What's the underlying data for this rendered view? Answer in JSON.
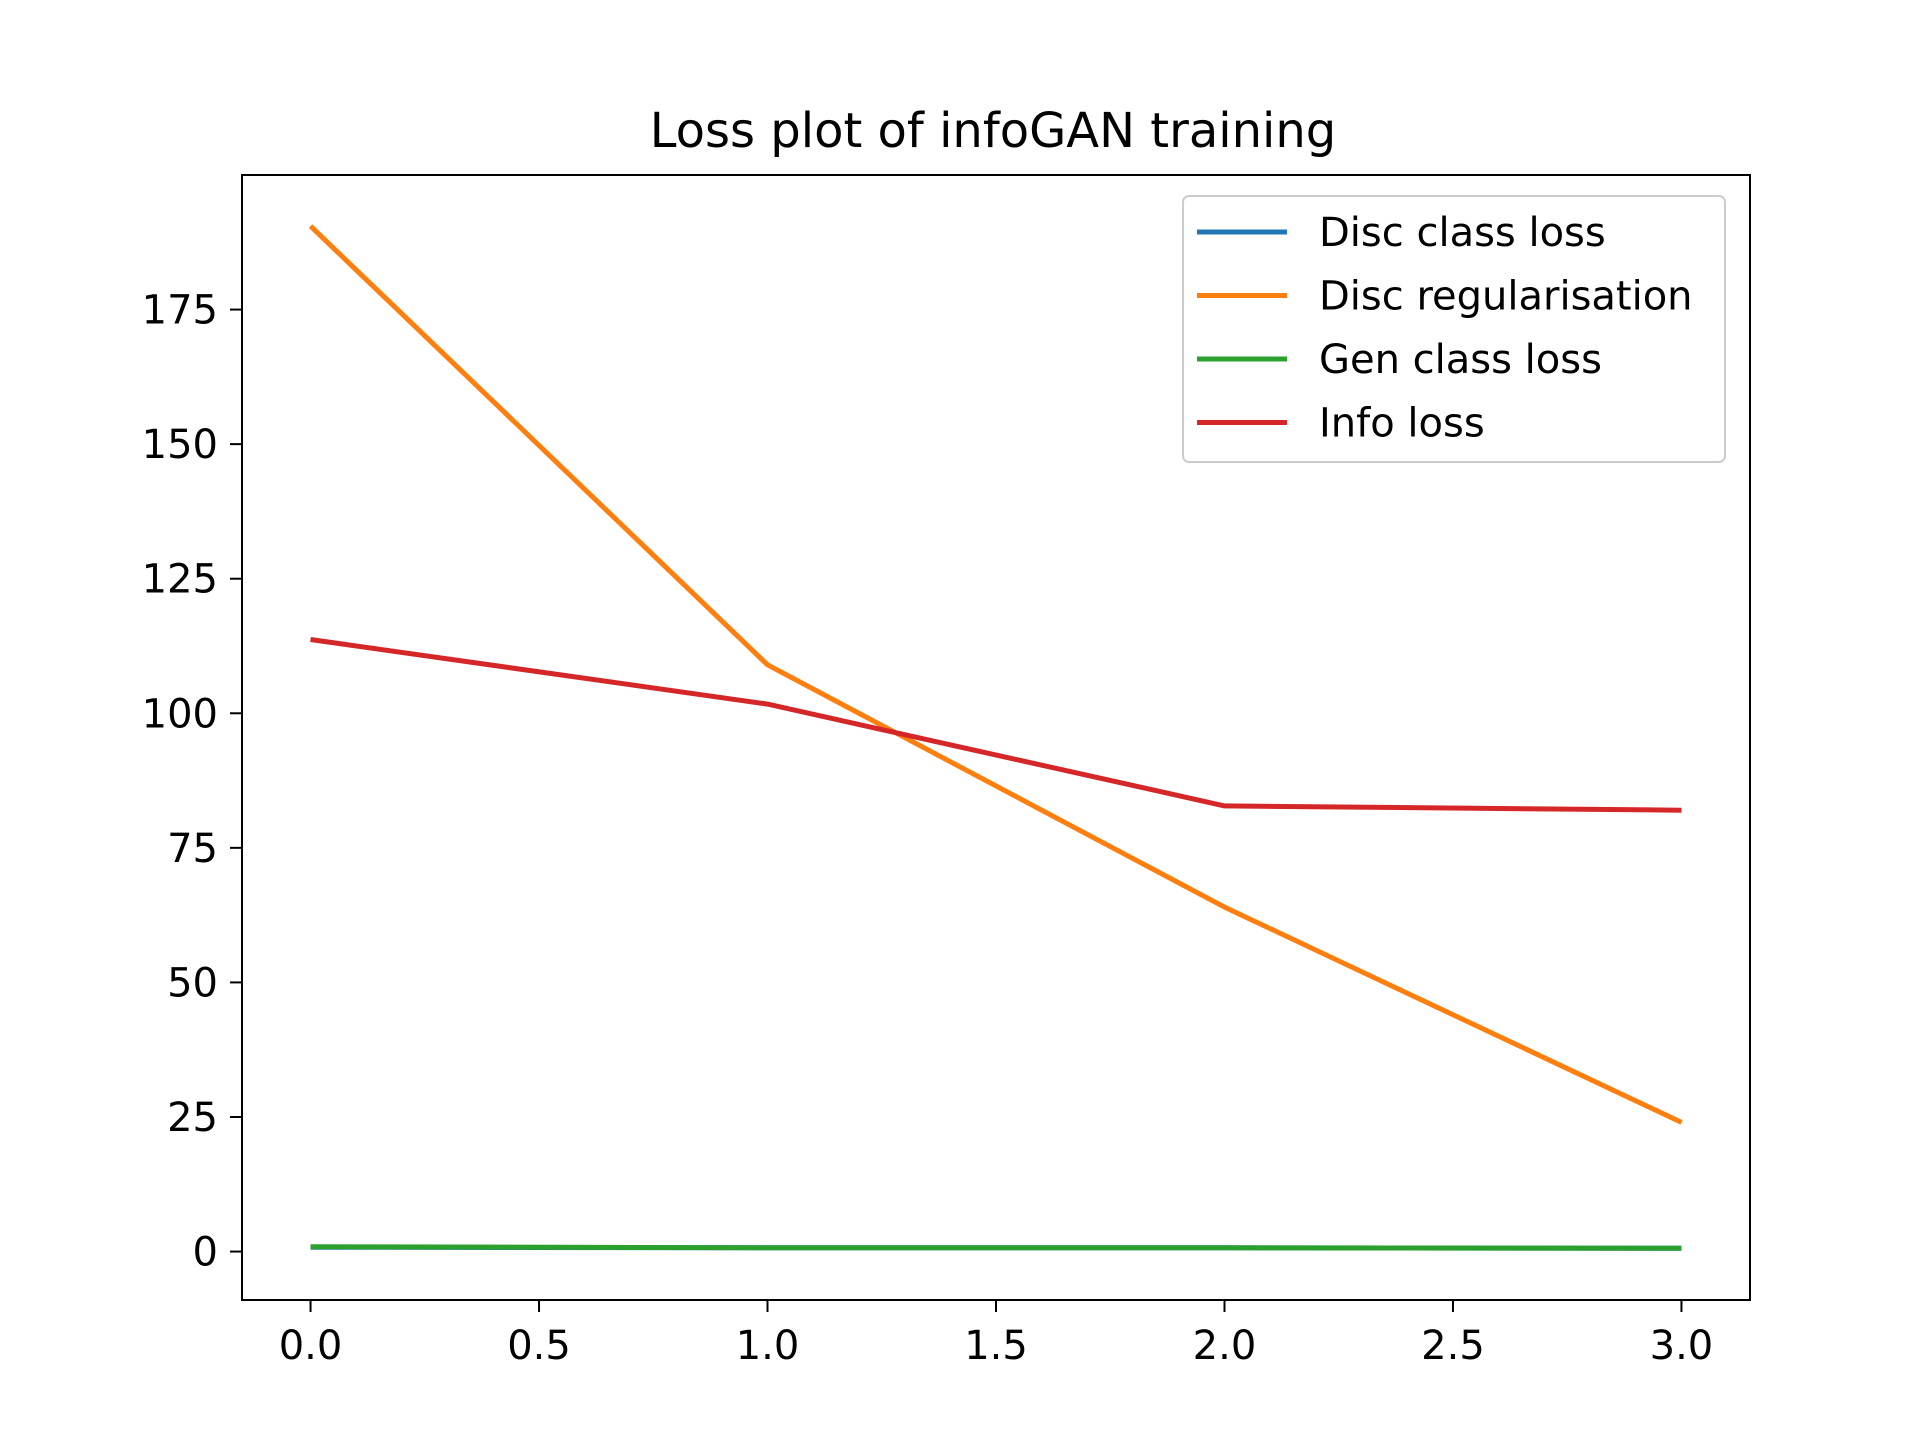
{
  "chart_data": {
    "type": "line",
    "title": "Loss plot of infoGAN training",
    "xlabel": "",
    "ylabel": "",
    "x": [
      0,
      1,
      2,
      3
    ],
    "xlim": [
      -0.15,
      3.15
    ],
    "ylim": [
      -9,
      200
    ],
    "xticks": [
      0.0,
      0.5,
      1.0,
      1.5,
      2.0,
      2.5,
      3.0
    ],
    "xtick_labels": [
      "0.0",
      "0.5",
      "1.0",
      "1.5",
      "2.0",
      "2.5",
      "3.0"
    ],
    "yticks": [
      0,
      25,
      50,
      75,
      100,
      125,
      150,
      175
    ],
    "ytick_labels": [
      "0",
      "25",
      "50",
      "75",
      "100",
      "125",
      "150",
      "175"
    ],
    "grid": false,
    "legend_position": "top-right",
    "series": [
      {
        "name": "Disc class loss",
        "color": "#1f77b4",
        "values": [
          0.8,
          0.7,
          0.7,
          0.6
        ]
      },
      {
        "name": "Disc regularisation",
        "color": "#ff7f0e",
        "values": [
          190.5,
          109,
          64,
          24
        ]
      },
      {
        "name": "Gen class loss",
        "color": "#2ca02c",
        "values": [
          0.9,
          0.7,
          0.7,
          0.6
        ]
      },
      {
        "name": "Info loss",
        "color": "#d62728",
        "values": [
          113.7,
          101.7,
          82.8,
          82
        ]
      }
    ]
  }
}
